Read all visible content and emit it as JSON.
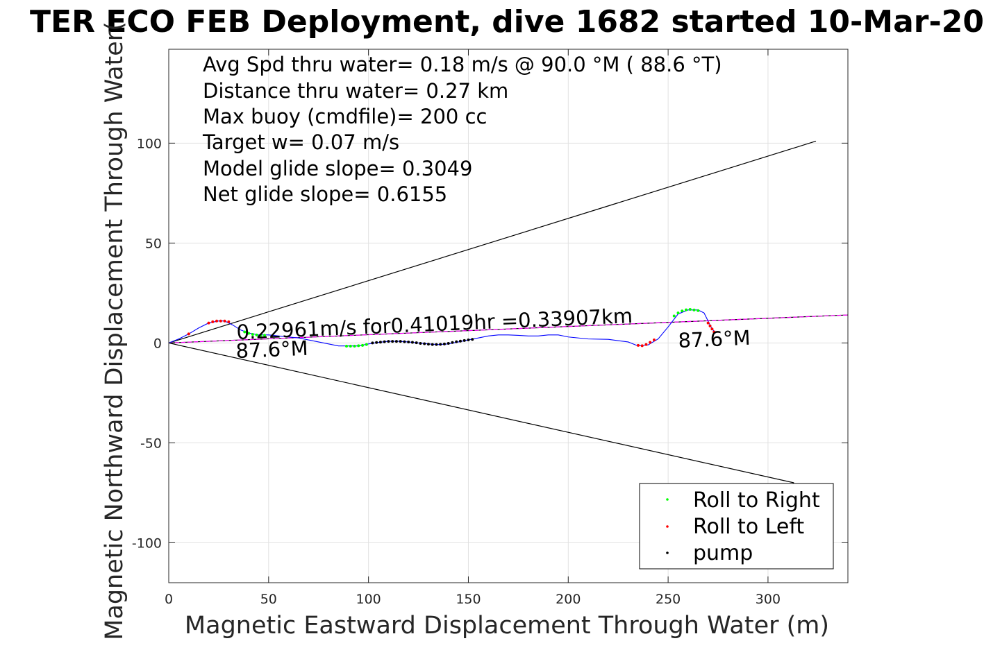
{
  "chart_data": {
    "type": "line",
    "title": "TER ECO FEB Deployment, dive 1682 started 10-Mar-20",
    "xlabel": "Magnetic Eastward Displacement Through Water (m)",
    "ylabel": "Magnetic Northward Displacement Through Water(",
    "xlim": [
      0,
      340
    ],
    "ylim": [
      -120,
      147
    ],
    "grid": true,
    "x_ticks": [
      0,
      50,
      100,
      150,
      200,
      250,
      300
    ],
    "y_ticks": [
      -100,
      -50,
      0,
      50,
      100
    ],
    "x_tick_labels": [
      "0",
      "50",
      "100",
      "150",
      "200",
      "250",
      "300"
    ],
    "y_tick_labels": [
      "-100",
      "-50",
      "0",
      "50",
      "100"
    ],
    "info_lines": [
      "Avg Spd thru water=  0.18 m/s @  90.0 °M ( 88.6 °T)",
      "Distance thru water=  0.27 km",
      "Max buoy (cmdfile)= 200 cc",
      "Target w= 0.07 m/s",
      "Model glide slope= 0.3049",
      "Net glide slope= 0.6155"
    ],
    "annotations": {
      "speed_text": "0.22961m/s for0.41019hr =0.33907km",
      "heading_left": "87.6°M",
      "heading_right": "87.6°M"
    },
    "lines": {
      "cone_upper": {
        "color": "#000000",
        "x": [
          0,
          324
        ],
        "y": [
          0,
          101
        ]
      },
      "cone_lower": {
        "color": "#000000",
        "x": [
          0,
          313
        ],
        "y": [
          0,
          -70
        ]
      },
      "heading_line": {
        "color": "#000000",
        "x": [
          0,
          340
        ],
        "y": [
          0,
          14
        ]
      },
      "net_line": {
        "color": "#ff00ff",
        "x": [
          0,
          340
        ],
        "y": [
          0,
          14
        ]
      }
    },
    "series": [
      {
        "name": "track",
        "color": "#0000ff",
        "x": [
          0,
          5,
          10,
          15,
          20,
          25,
          28,
          32,
          36,
          40,
          45,
          50,
          55,
          60,
          65,
          70,
          75,
          80,
          85,
          90,
          95,
          100,
          105,
          110,
          115,
          120,
          125,
          130,
          135,
          140,
          145,
          150,
          155,
          160,
          165,
          170,
          175,
          180,
          185,
          190,
          195,
          200,
          210,
          220,
          230,
          235,
          240,
          245,
          250,
          255,
          260,
          265,
          268,
          270,
          272,
          274
        ],
        "y": [
          0,
          2,
          4.5,
          7.5,
          10,
          11,
          11,
          9,
          6.5,
          5,
          4,
          4,
          3.5,
          3,
          2.5,
          1.5,
          0.5,
          -0.5,
          -1.5,
          -1.5,
          -1.5,
          -0.5,
          0.3,
          0.8,
          0.8,
          0.5,
          0,
          -0.5,
          -0.8,
          -0.5,
          0.5,
          1.5,
          2.5,
          3.5,
          4,
          4,
          3.8,
          3.5,
          3.5,
          4,
          4,
          3,
          2,
          1.8,
          0.5,
          -1.5,
          -1,
          2,
          8,
          14.5,
          16.5,
          16.5,
          15,
          11,
          7,
          5
        ]
      },
      {
        "name": "Roll to Right",
        "color": "#00ff00",
        "x": [
          38,
          40,
          42,
          44,
          46,
          48,
          89,
          91,
          93,
          95,
          97,
          99,
          253,
          255,
          257,
          259,
          261,
          263,
          265
        ],
        "y": [
          5.5,
          4.8,
          4.3,
          4,
          3.9,
          3.8,
          -1.6,
          -1.6,
          -1.6,
          -1.4,
          -1.2,
          -0.8,
          13.5,
          15,
          16,
          16.6,
          16.8,
          16.5,
          16.2
        ]
      },
      {
        "name": "Roll to Left",
        "color": "#ff0000",
        "x": [
          10,
          20,
          22,
          24,
          26,
          28,
          30,
          235,
          237,
          239,
          241,
          243,
          270,
          271,
          272,
          273
        ],
        "y": [
          4.5,
          10,
          10.6,
          11,
          11,
          11,
          10.6,
          -1.2,
          -1.4,
          -0.8,
          0.3,
          1.5,
          10,
          8.5,
          7,
          5.5
        ]
      },
      {
        "name": "pump",
        "color": "#000000",
        "x": [
          102,
          104,
          106,
          108,
          110,
          112,
          114,
          116,
          118,
          120,
          122,
          124,
          126,
          128,
          130,
          132,
          134,
          136,
          138,
          140,
          142,
          144,
          146,
          148,
          150,
          152
        ],
        "y": [
          0,
          0.2,
          0.4,
          0.6,
          0.8,
          0.8,
          0.8,
          0.8,
          0.6,
          0.5,
          0.3,
          0.1,
          -0.2,
          -0.4,
          -0.6,
          -0.8,
          -0.8,
          -0.7,
          -0.5,
          -0.2,
          0.2,
          0.6,
          0.9,
          1.2,
          1.5,
          1.8
        ]
      }
    ],
    "legend": {
      "position": "bottom-right",
      "entries": [
        {
          "label": "Roll to Right",
          "color": "#00ff00"
        },
        {
          "label": "Roll to Left",
          "color": "#ff0000"
        },
        {
          "label": "pump",
          "color": "#000000"
        }
      ]
    }
  }
}
